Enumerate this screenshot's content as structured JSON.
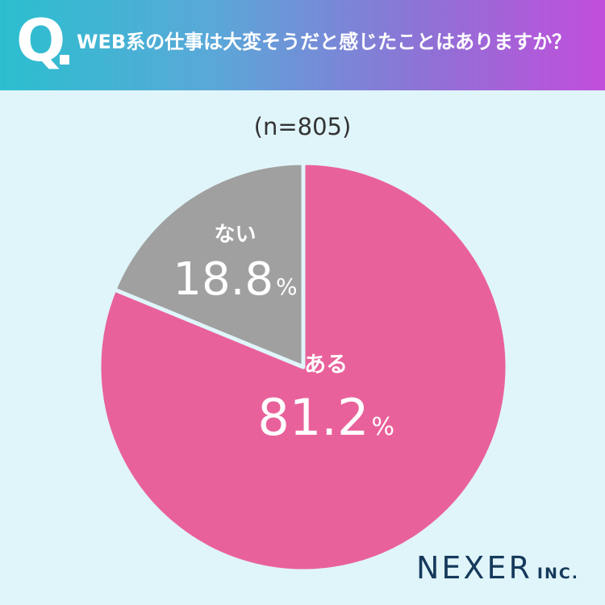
{
  "header": {
    "q_mark": "Q",
    "question": "WEB系の仕事は大変そうだと感じたことはありますか？"
  },
  "sample_size": "(n=805)",
  "chart_data": {
    "type": "pie",
    "title": "WEB系の仕事は大変そうだと感じたことはありますか？",
    "slices": [
      {
        "label": "ある",
        "value": 81.2,
        "display": "81.2",
        "color": "#e9619b"
      },
      {
        "label": "ない",
        "value": 18.8,
        "display": "18.8",
        "color": "#a0a0a0"
      }
    ],
    "unit": "%",
    "start": "12 o'clock",
    "direction": "clockwise"
  },
  "logo": {
    "main": "NEXER",
    "sub": "INC."
  },
  "colors": {
    "background": "#e0f5f9",
    "gradient_start": "#2bbfcf",
    "gradient_end": "#c24edc",
    "slice_border": "#e0f5f9"
  }
}
